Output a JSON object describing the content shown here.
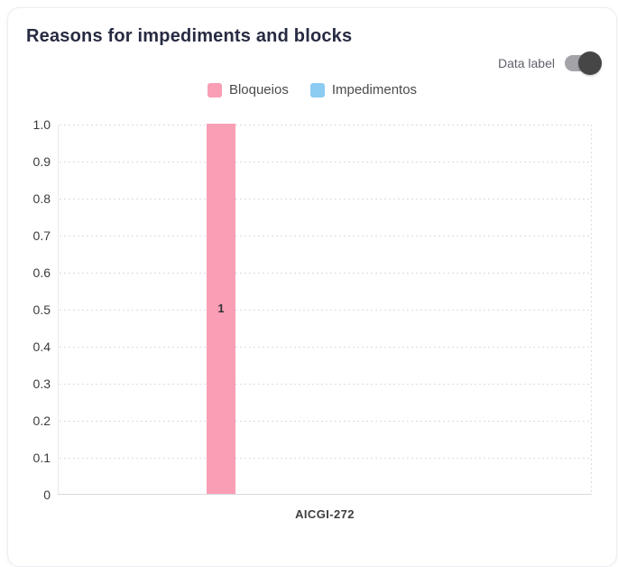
{
  "card": {
    "title": "Reasons for impediments and blocks",
    "toggle": {
      "label": "Data label",
      "state": "on"
    }
  },
  "colors": {
    "title": "#272b42",
    "bloqueios_pink": "#F99EB5",
    "impedimentos_blue": "#8CCBF2",
    "toggle_knob": "#464646",
    "toggle_track": "#a3a3a8"
  },
  "chart_data": {
    "type": "bar",
    "title": "Reasons for impediments and blocks",
    "categories": [
      "AICGI-272"
    ],
    "series": [
      {
        "name": "Bloqueios",
        "color": "#F99EB5",
        "values": [
          1
        ]
      },
      {
        "name": "Impedimentos",
        "color": "#8CCBF2",
        "values": [
          0
        ]
      }
    ],
    "ylim": [
      0,
      1.0
    ],
    "ytick_step": 0.1,
    "yticks": [
      "1.0",
      "0.9",
      "0.8",
      "0.7",
      "0.6",
      "0.5",
      "0.4",
      "0.3",
      "0.2",
      "0.1",
      "0"
    ],
    "grid": "horizontal-dotted",
    "legend_position": "top-center",
    "data_labels_on": true,
    "data_labels": [
      "1"
    ]
  }
}
